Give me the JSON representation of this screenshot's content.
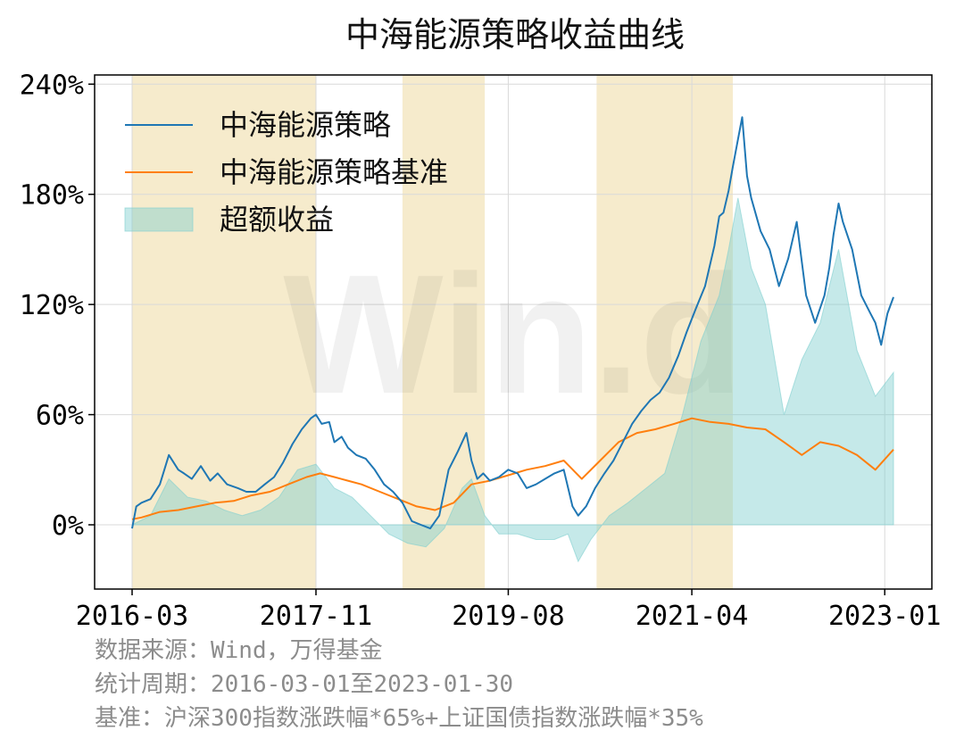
{
  "chart_data": {
    "type": "line",
    "title": "中海能源策略收益曲线",
    "xlabel": "",
    "ylabel": "",
    "x_range": [
      "2016-03-01",
      "2023-01-30"
    ],
    "ylim": [
      -35,
      245
    ],
    "y_ticks": [
      0,
      60,
      120,
      180,
      240
    ],
    "y_tick_labels": [
      "0%",
      "60%",
      "120%",
      "180%",
      "240%"
    ],
    "x_ticks": [
      "2016-03-01",
      "2017-11-01",
      "2019-08-01",
      "2021-04-01",
      "2023-01-01"
    ],
    "x_tick_labels": [
      "2016-03",
      "2017-11",
      "2019-08",
      "2021-04",
      "2023-01"
    ],
    "grid": true,
    "legend_placement": "top-left",
    "watermark": "Win.d",
    "colors": {
      "strategy": "#1f77b4",
      "benchmark": "#ff7f0e",
      "excess_fill": "#7ecfcf",
      "shaded_period": "#f6ebcc"
    },
    "shaded_periods": [
      [
        "2016-03-01",
        "2017-11-01"
      ],
      [
        "2018-08-15",
        "2019-05-15"
      ],
      [
        "2020-05-20",
        "2021-08-15"
      ]
    ],
    "series": [
      {
        "name": "中海能源策略",
        "key": "strategy",
        "x": [
          "2016-03-01",
          "2016-03-15",
          "2016-04-01",
          "2016-05-01",
          "2016-06-01",
          "2016-07-01",
          "2016-08-01",
          "2016-08-20",
          "2016-09-15",
          "2016-10-15",
          "2016-11-15",
          "2016-12-10",
          "2017-01-10",
          "2017-02-15",
          "2017-03-15",
          "2017-04-15",
          "2017-05-15",
          "2017-06-15",
          "2017-07-15",
          "2017-08-15",
          "2017-09-15",
          "2017-10-15",
          "2017-11-01",
          "2017-11-20",
          "2017-12-15",
          "2018-01-01",
          "2018-01-25",
          "2018-02-15",
          "2018-03-15",
          "2018-04-15",
          "2018-05-15",
          "2018-06-15",
          "2018-07-15",
          "2018-08-15",
          "2018-09-15",
          "2018-10-15",
          "2018-11-15",
          "2018-12-15",
          "2019-01-15",
          "2019-02-15",
          "2019-03-15",
          "2019-04-01",
          "2019-04-20",
          "2019-05-10",
          "2019-06-01",
          "2019-07-01",
          "2019-08-01",
          "2019-09-01",
          "2019-10-01",
          "2019-11-01",
          "2019-12-01",
          "2020-01-01",
          "2020-02-01",
          "2020-03-01",
          "2020-03-20",
          "2020-04-15",
          "2020-05-15",
          "2020-06-15",
          "2020-07-15",
          "2020-08-15",
          "2020-09-15",
          "2020-10-15",
          "2020-11-15",
          "2020-12-15",
          "2021-01-15",
          "2021-02-15",
          "2021-03-15",
          "2021-04-15",
          "2021-05-15",
          "2021-06-15",
          "2021-07-01",
          "2021-07-15",
          "2021-08-01",
          "2021-08-15",
          "2021-09-01",
          "2021-09-15",
          "2021-10-01",
          "2021-10-15",
          "2021-11-15",
          "2021-12-15",
          "2022-01-15",
          "2022-02-15",
          "2022-03-15",
          "2022-04-15",
          "2022-05-15",
          "2022-06-15",
          "2022-07-01",
          "2022-07-15",
          "2022-08-01",
          "2022-08-15",
          "2022-09-15",
          "2022-10-15",
          "2022-11-15",
          "2022-12-01",
          "2022-12-20",
          "2023-01-10",
          "2023-01-30"
        ],
        "values": [
          -2,
          10,
          12,
          14,
          22,
          38,
          30,
          28,
          25,
          32,
          24,
          28,
          22,
          20,
          18,
          18,
          22,
          26,
          34,
          44,
          52,
          58,
          60,
          55,
          56,
          45,
          48,
          42,
          38,
          36,
          30,
          22,
          18,
          12,
          2,
          0,
          -2,
          5,
          30,
          40,
          50,
          35,
          25,
          28,
          24,
          26,
          30,
          28,
          20,
          22,
          25,
          28,
          30,
          10,
          5,
          10,
          20,
          28,
          35,
          45,
          55,
          62,
          68,
          72,
          80,
          92,
          105,
          118,
          130,
          152,
          168,
          170,
          182,
          195,
          210,
          222,
          190,
          178,
          160,
          150,
          130,
          145,
          165,
          125,
          110,
          125,
          140,
          158,
          175,
          165,
          150,
          125,
          115,
          110,
          98,
          115,
          124
        ]
      },
      {
        "name": "中海能源策略基准",
        "key": "benchmark",
        "x": [
          "2016-03-01",
          "2016-04-01",
          "2016-06-01",
          "2016-08-01",
          "2016-10-01",
          "2016-12-01",
          "2017-02-01",
          "2017-04-01",
          "2017-06-01",
          "2017-08-01",
          "2017-10-01",
          "2017-11-15",
          "2018-01-01",
          "2018-02-15",
          "2018-04-01",
          "2018-06-01",
          "2018-08-01",
          "2018-10-01",
          "2018-12-01",
          "2019-02-01",
          "2019-04-01",
          "2019-06-01",
          "2019-08-01",
          "2019-10-01",
          "2019-12-01",
          "2020-02-01",
          "2020-04-01",
          "2020-06-01",
          "2020-08-01",
          "2020-10-01",
          "2020-12-01",
          "2021-02-01",
          "2021-04-01",
          "2021-06-01",
          "2021-08-01",
          "2021-10-01",
          "2021-12-01",
          "2022-02-01",
          "2022-04-01",
          "2022-06-01",
          "2022-08-01",
          "2022-10-01",
          "2022-12-01",
          "2023-01-30"
        ],
        "values": [
          3,
          4,
          7,
          8,
          10,
          12,
          13,
          16,
          18,
          22,
          26,
          28,
          26,
          24,
          22,
          18,
          14,
          10,
          8,
          12,
          22,
          24,
          27,
          30,
          32,
          35,
          25,
          35,
          45,
          50,
          52,
          55,
          58,
          56,
          55,
          53,
          52,
          45,
          38,
          45,
          43,
          38,
          30,
          41
        ]
      },
      {
        "name": "超额收益",
        "key": "excess",
        "type": "area",
        "x": [
          "2016-03-01",
          "2016-05-01",
          "2016-07-01",
          "2016-09-01",
          "2016-11-01",
          "2017-01-01",
          "2017-03-01",
          "2017-05-01",
          "2017-07-01",
          "2017-09-01",
          "2017-11-01",
          "2018-01-01",
          "2018-03-01",
          "2018-05-01",
          "2018-07-01",
          "2018-09-01",
          "2018-11-01",
          "2019-01-01",
          "2019-03-01",
          "2019-04-01",
          "2019-05-15",
          "2019-07-01",
          "2019-09-01",
          "2019-11-01",
          "2020-01-01",
          "2020-02-15",
          "2020-03-20",
          "2020-05-01",
          "2020-07-01",
          "2020-09-01",
          "2020-11-01",
          "2021-01-01",
          "2021-03-01",
          "2021-05-01",
          "2021-07-01",
          "2021-08-01",
          "2021-09-01",
          "2021-10-15",
          "2021-12-01",
          "2022-02-01",
          "2022-04-01",
          "2022-06-01",
          "2022-08-01",
          "2022-10-01",
          "2022-12-01",
          "2023-01-30"
        ],
        "values": [
          0,
          5,
          25,
          15,
          13,
          8,
          5,
          8,
          15,
          30,
          33,
          20,
          15,
          5,
          -5,
          -10,
          -12,
          -2,
          20,
          25,
          5,
          -5,
          -5,
          -8,
          -8,
          -5,
          -20,
          -8,
          5,
          12,
          20,
          28,
          60,
          100,
          125,
          150,
          178,
          140,
          120,
          60,
          90,
          110,
          150,
          95,
          70,
          83
        ]
      }
    ]
  },
  "footnotes": {
    "source": "数据来源：Wind，万得基金",
    "period": "统计周期：2016-03-01至2023-01-30",
    "benchmark": "基准：沪深300指数涨跌幅*65%+上证国债指数涨跌幅*35%"
  }
}
